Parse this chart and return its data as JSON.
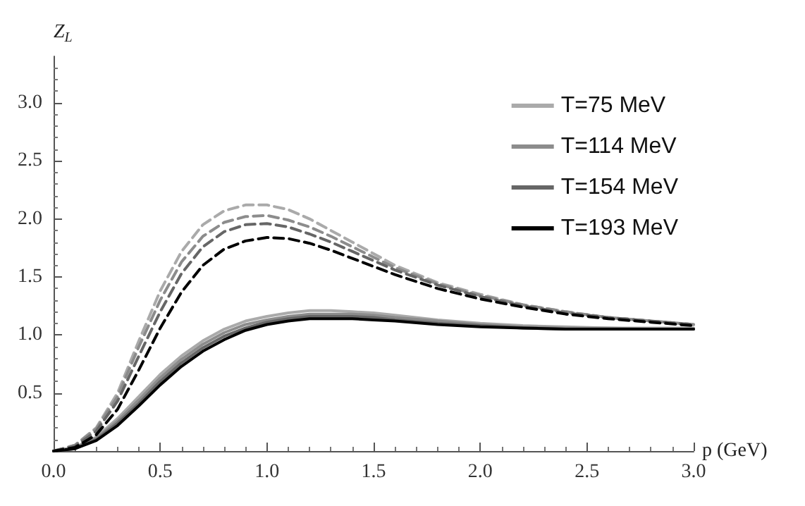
{
  "chart_data": {
    "type": "line",
    "xlabel": "p (GeV)",
    "ylabel": "Z$_{L}$",
    "x": [
      0,
      0.1,
      0.2,
      0.3,
      0.4,
      0.5,
      0.6,
      0.7,
      0.8,
      0.9,
      1.0,
      1.1,
      1.2,
      1.3,
      1.4,
      1.5,
      1.6,
      1.8,
      2.0,
      2.2,
      2.4,
      2.6,
      2.8,
      3.0
    ],
    "series": [
      {
        "name": "T=75 MeV",
        "color": "#aaaaaa",
        "line_style": "solid",
        "values": [
          0,
          0.03,
          0.12,
          0.28,
          0.47,
          0.66,
          0.82,
          0.95,
          1.05,
          1.12,
          1.16,
          1.19,
          1.21,
          1.21,
          1.2,
          1.19,
          1.17,
          1.13,
          1.1,
          1.08,
          1.07,
          1.06,
          1.06,
          1.06
        ]
      },
      {
        "name": "T=114 MeV",
        "color": "#8c8c8c",
        "line_style": "solid",
        "values": [
          0,
          0.03,
          0.11,
          0.26,
          0.44,
          0.63,
          0.79,
          0.92,
          1.02,
          1.09,
          1.13,
          1.16,
          1.18,
          1.18,
          1.18,
          1.17,
          1.15,
          1.12,
          1.09,
          1.07,
          1.06,
          1.06,
          1.05,
          1.05
        ]
      },
      {
        "name": "T=154 MeV",
        "color": "#666666",
        "line_style": "solid",
        "values": [
          0,
          0.02,
          0.1,
          0.24,
          0.41,
          0.6,
          0.76,
          0.89,
          0.99,
          1.06,
          1.11,
          1.14,
          1.16,
          1.16,
          1.16,
          1.15,
          1.13,
          1.1,
          1.08,
          1.06,
          1.05,
          1.05,
          1.05,
          1.05
        ]
      },
      {
        "name": "T=193 MeV",
        "color": "#000000",
        "line_style": "solid",
        "values": [
          0,
          0.02,
          0.09,
          0.22,
          0.39,
          0.57,
          0.73,
          0.86,
          0.96,
          1.04,
          1.09,
          1.12,
          1.14,
          1.14,
          1.14,
          1.13,
          1.12,
          1.09,
          1.07,
          1.06,
          1.05,
          1.05,
          1.05,
          1.05
        ]
      },
      {
        "color": "#aaaaaa",
        "line_style": "dashed",
        "values": [
          0,
          0.05,
          0.2,
          0.5,
          0.95,
          1.38,
          1.72,
          1.95,
          2.07,
          2.12,
          2.12,
          2.08,
          2.0,
          1.9,
          1.8,
          1.7,
          1.6,
          1.45,
          1.35,
          1.26,
          1.2,
          1.15,
          1.12,
          1.09
        ]
      },
      {
        "color": "#8c8c8c",
        "line_style": "dashed",
        "values": [
          0,
          0.05,
          0.19,
          0.47,
          0.9,
          1.3,
          1.63,
          1.85,
          1.97,
          2.02,
          2.03,
          1.99,
          1.93,
          1.85,
          1.76,
          1.67,
          1.58,
          1.44,
          1.34,
          1.26,
          1.2,
          1.15,
          1.12,
          1.09
        ]
      },
      {
        "color": "#666666",
        "line_style": "dashed",
        "values": [
          0,
          0.04,
          0.17,
          0.43,
          0.82,
          1.2,
          1.53,
          1.76,
          1.89,
          1.95,
          1.96,
          1.93,
          1.87,
          1.8,
          1.72,
          1.64,
          1.56,
          1.43,
          1.33,
          1.25,
          1.19,
          1.15,
          1.12,
          1.09
        ]
      },
      {
        "color": "#000000",
        "line_style": "dashed",
        "values": [
          0,
          0.03,
          0.14,
          0.36,
          0.7,
          1.06,
          1.37,
          1.6,
          1.74,
          1.81,
          1.84,
          1.83,
          1.79,
          1.73,
          1.66,
          1.59,
          1.52,
          1.4,
          1.31,
          1.24,
          1.18,
          1.14,
          1.11,
          1.08
        ]
      }
    ],
    "xlim": [
      0,
      3
    ],
    "ylim": [
      0,
      3.4
    ],
    "xticks": [
      {
        "value": 0,
        "label": "0.0"
      },
      0.5,
      {
        "value": 1,
        "label": "1.0"
      },
      1.5,
      {
        "value": 2,
        "label": "2.0"
      },
      2.5,
      {
        "value": 3,
        "label": "3.0"
      }
    ],
    "yticks": [
      0.5,
      {
        "value": 1,
        "label": "1.0"
      },
      1.5,
      {
        "value": 2,
        "label": "2.0"
      },
      2.5,
      {
        "value": 3,
        "label": "3.0"
      }
    ],
    "grid": false,
    "legend": "top right",
    "marker": "none"
  }
}
